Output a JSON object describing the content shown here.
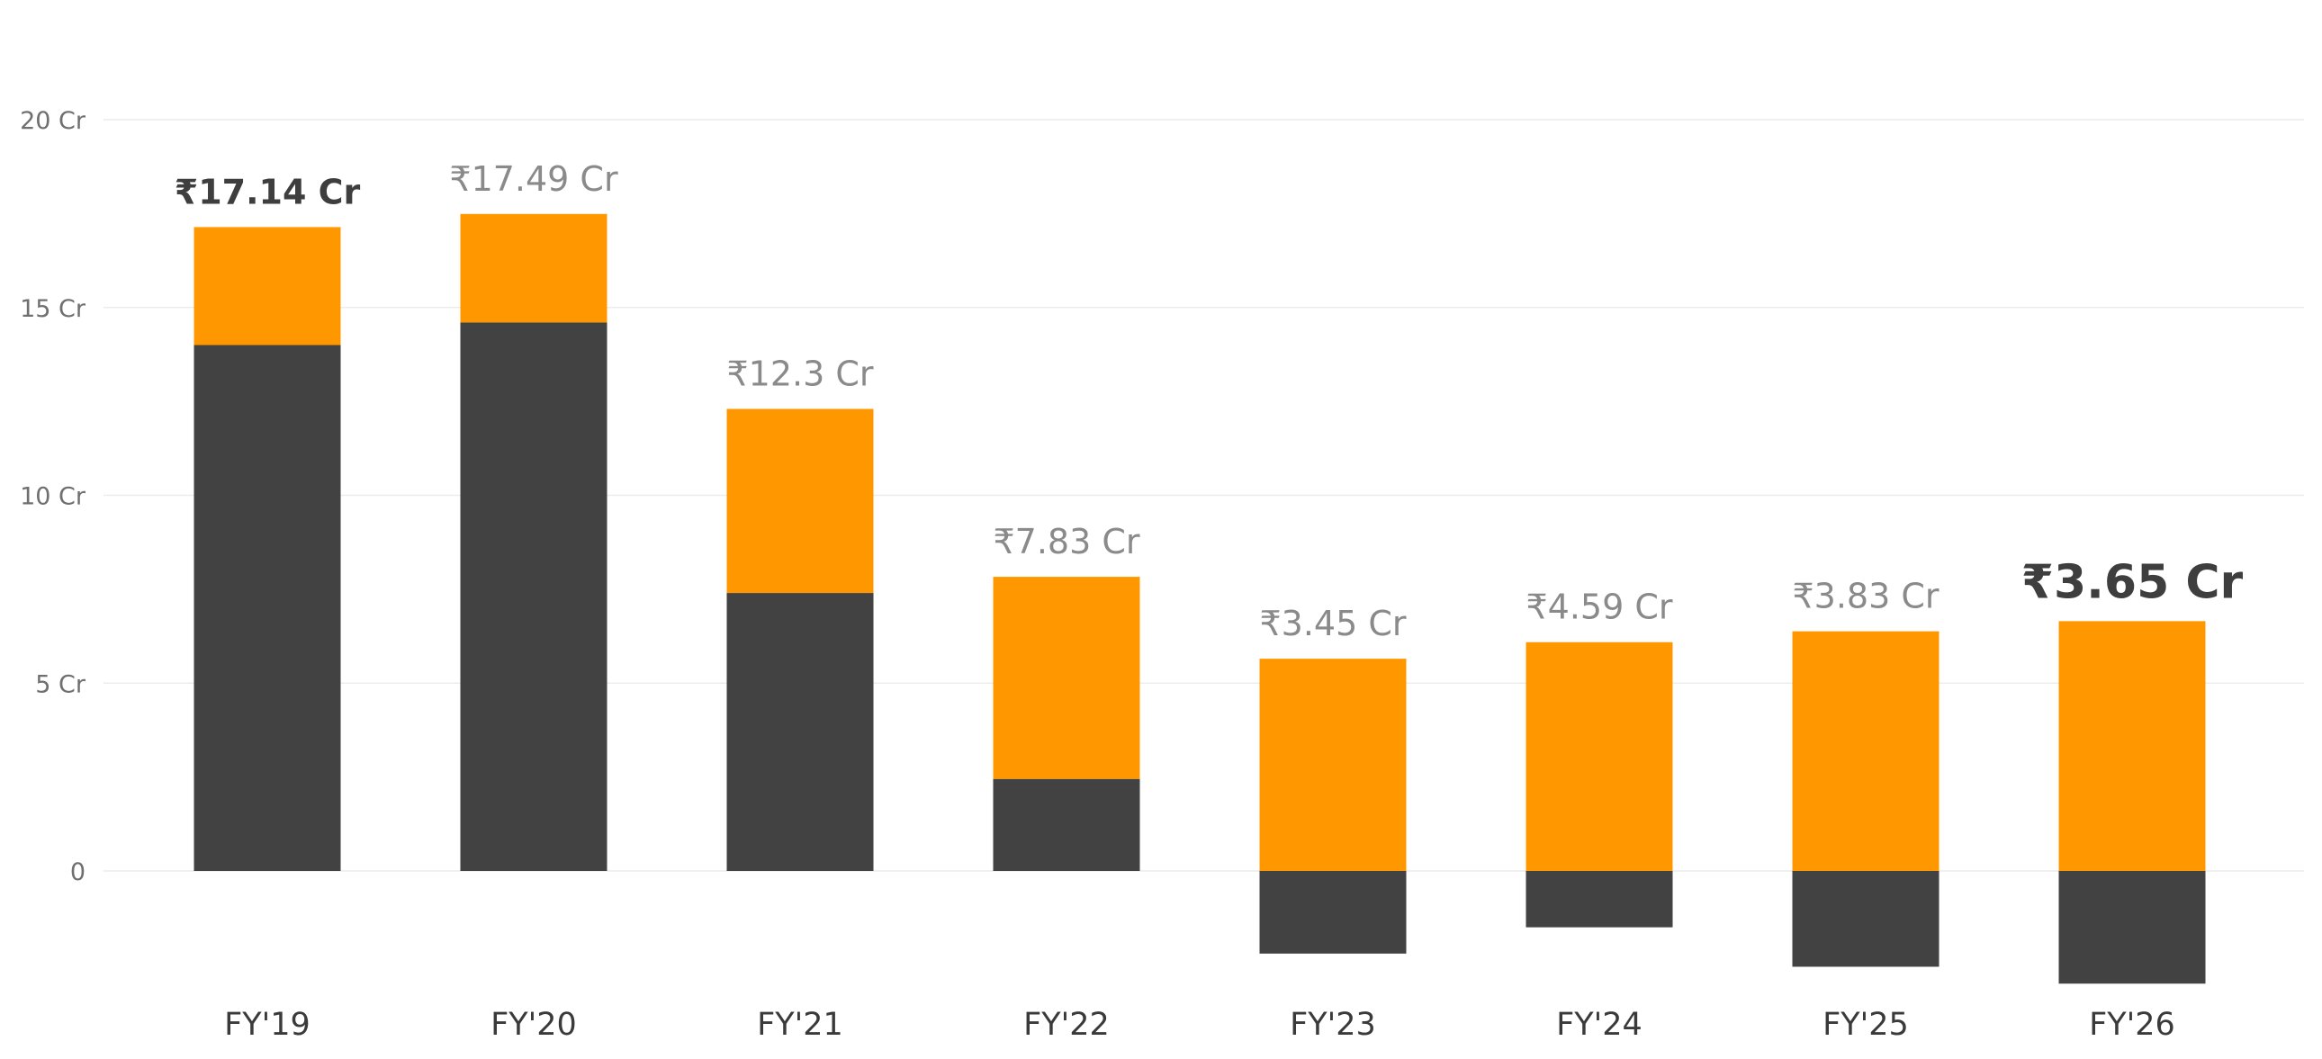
{
  "chart_data": {
    "type": "bar",
    "stacked": true,
    "title": "",
    "xlabel": "",
    "ylabel": "",
    "categories": [
      "FY'19",
      "FY'20",
      "FY'21",
      "FY'22",
      "FY'23",
      "FY'24",
      "FY'25",
      "FY'26"
    ],
    "series": [
      {
        "color": "#424242",
        "values": [
          14.0,
          14.6,
          7.4,
          2.45,
          -2.2,
          -1.5,
          -2.55,
          -3.0
        ]
      },
      {
        "color": "#FF9800",
        "values": [
          3.14,
          2.89,
          4.9,
          5.38,
          5.65,
          6.09,
          6.38,
          6.65
        ]
      }
    ],
    "total_labels": [
      "₹17.14 Cr",
      "₹17.49 Cr",
      "₹12.3 Cr",
      "₹7.83 Cr",
      "₹3.45 Cr",
      "₹4.59 Cr",
      "₹3.83 Cr",
      "₹3.65 Cr"
    ],
    "y_ticks": [
      {
        "value": 0,
        "label": "0"
      },
      {
        "value": 5,
        "label": "5 Cr"
      },
      {
        "value": 10,
        "label": "10 Cr"
      },
      {
        "value": 15,
        "label": "15 Cr"
      },
      {
        "value": 20,
        "label": "20 Cr"
      }
    ],
    "ylim": [
      -3.5,
      23
    ],
    "grid": true,
    "legend": "none"
  }
}
